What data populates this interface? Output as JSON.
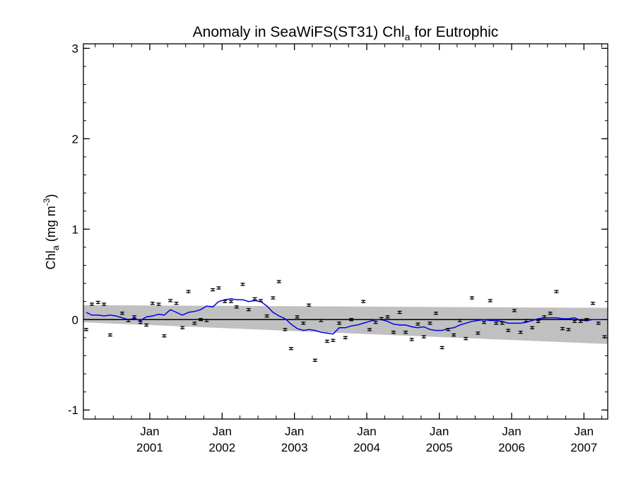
{
  "chart_data": {
    "type": "scatter",
    "title": "Anomaly in SeaWiFS(ST31) Chl",
    "title_subscript": "a",
    "title_suffix": " for Eutrophic",
    "ylabel": "Chl",
    "ylabel_subscript": "a",
    "ylabel_unit": " (mg m",
    "ylabel_unit_sup": "-3",
    "ylabel_close": ")",
    "ylim": [
      -1.1,
      3.05
    ],
    "xlim": [
      "2000-02-01",
      "2007-05-01"
    ],
    "y_ticks": [
      -1,
      0,
      1,
      2,
      3
    ],
    "x_ticks": [
      {
        "date": "2001-01-01",
        "label1": "Jan",
        "label2": "2001"
      },
      {
        "date": "2002-01-01",
        "label1": "Jan",
        "label2": "2002"
      },
      {
        "date": "2003-01-01",
        "label1": "Jan",
        "label2": "2003"
      },
      {
        "date": "2004-01-01",
        "label1": "Jan",
        "label2": "2004"
      },
      {
        "date": "2005-01-01",
        "label1": "Jan",
        "label2": "2005"
      },
      {
        "date": "2006-01-01",
        "label1": "Jan",
        "label2": "2006"
      },
      {
        "date": "2007-01-01",
        "label1": "Jan",
        "label2": "2007"
      }
    ],
    "zero_line": 0,
    "error_half": 0.012,
    "points": [
      {
        "x": "2000-02",
        "y": -0.11
      },
      {
        "x": "2000-03",
        "y": 0.17
      },
      {
        "x": "2000-04",
        "y": 0.19
      },
      {
        "x": "2000-05",
        "y": 0.17
      },
      {
        "x": "2000-06",
        "y": -0.17
      },
      {
        "x": "2000-08",
        "y": 0.07
      },
      {
        "x": "2000-09",
        "y": -0.01
      },
      {
        "x": "2000-10",
        "y": 0.03
      },
      {
        "x": "2000-11",
        "y": -0.03
      },
      {
        "x": "2000-12",
        "y": -0.06
      },
      {
        "x": "2001-01",
        "y": 0.18
      },
      {
        "x": "2001-02",
        "y": 0.17
      },
      {
        "x": "2001-03",
        "y": -0.18
      },
      {
        "x": "2001-04",
        "y": 0.21
      },
      {
        "x": "2001-05",
        "y": 0.18
      },
      {
        "x": "2001-06",
        "y": -0.09
      },
      {
        "x": "2001-07",
        "y": 0.31
      },
      {
        "x": "2001-08",
        "y": -0.04
      },
      {
        "x": "2001-09",
        "y": 0.0
      },
      {
        "x": "2001-10",
        "y": -0.01
      },
      {
        "x": "2001-11",
        "y": 0.33
      },
      {
        "x": "2001-12",
        "y": 0.35
      },
      {
        "x": "2002-01",
        "y": 0.2
      },
      {
        "x": "2002-02",
        "y": 0.2
      },
      {
        "x": "2002-03",
        "y": 0.14
      },
      {
        "x": "2002-04",
        "y": 0.39
      },
      {
        "x": "2002-05",
        "y": 0.11
      },
      {
        "x": "2002-06",
        "y": 0.23
      },
      {
        "x": "2002-07",
        "y": 0.21
      },
      {
        "x": "2002-08",
        "y": 0.04
      },
      {
        "x": "2002-09",
        "y": 0.24
      },
      {
        "x": "2002-10",
        "y": 0.42
      },
      {
        "x": "2002-11",
        "y": -0.11
      },
      {
        "x": "2002-12",
        "y": -0.32
      },
      {
        "x": "2003-01",
        "y": 0.03
      },
      {
        "x": "2003-02",
        "y": -0.04
      },
      {
        "x": "2003-03",
        "y": 0.16
      },
      {
        "x": "2003-04",
        "y": -0.45
      },
      {
        "x": "2003-05",
        "y": -0.01
      },
      {
        "x": "2003-06",
        "y": -0.24
      },
      {
        "x": "2003-07",
        "y": -0.23
      },
      {
        "x": "2003-08",
        "y": -0.04
      },
      {
        "x": "2003-09",
        "y": -0.2
      },
      {
        "x": "2003-10",
        "y": 0.0
      },
      {
        "x": "2003-12",
        "y": 0.2
      },
      {
        "x": "2004-01",
        "y": -0.11
      },
      {
        "x": "2004-02",
        "y": -0.03
      },
      {
        "x": "2004-03",
        "y": 0.01
      },
      {
        "x": "2004-04",
        "y": 0.03
      },
      {
        "x": "2004-05",
        "y": -0.14
      },
      {
        "x": "2004-06",
        "y": 0.08
      },
      {
        "x": "2004-07",
        "y": -0.14
      },
      {
        "x": "2004-08",
        "y": -0.22
      },
      {
        "x": "2004-09",
        "y": -0.05
      },
      {
        "x": "2004-10",
        "y": -0.19
      },
      {
        "x": "2004-11",
        "y": -0.04
      },
      {
        "x": "2004-12",
        "y": 0.07
      },
      {
        "x": "2005-01",
        "y": -0.31
      },
      {
        "x": "2005-02",
        "y": -0.11
      },
      {
        "x": "2005-03",
        "y": -0.17
      },
      {
        "x": "2005-04",
        "y": -0.01
      },
      {
        "x": "2005-05",
        "y": -0.21
      },
      {
        "x": "2005-06",
        "y": 0.24
      },
      {
        "x": "2005-07",
        "y": -0.15
      },
      {
        "x": "2005-08",
        "y": -0.03
      },
      {
        "x": "2005-09",
        "y": 0.21
      },
      {
        "x": "2005-10",
        "y": -0.04
      },
      {
        "x": "2005-11",
        "y": -0.04
      },
      {
        "x": "2005-12",
        "y": -0.12
      },
      {
        "x": "2006-01",
        "y": 0.1
      },
      {
        "x": "2006-02",
        "y": -0.14
      },
      {
        "x": "2006-03",
        "y": -0.01
      },
      {
        "x": "2006-04",
        "y": -0.09
      },
      {
        "x": "2006-05",
        "y": -0.02
      },
      {
        "x": "2006-06",
        "y": 0.03
      },
      {
        "x": "2006-07",
        "y": 0.07
      },
      {
        "x": "2006-08",
        "y": 0.31
      },
      {
        "x": "2006-09",
        "y": -0.1
      },
      {
        "x": "2006-10",
        "y": -0.11
      },
      {
        "x": "2006-11",
        "y": -0.02
      },
      {
        "x": "2006-12",
        "y": -0.02
      },
      {
        "x": "2007-01",
        "y": 0.0
      },
      {
        "x": "2007-02",
        "y": 0.18
      },
      {
        "x": "2007-03",
        "y": -0.04
      },
      {
        "x": "2007-04",
        "y": -0.19
      }
    ],
    "running_mean": [
      {
        "x": "2000-02",
        "y": 0.08
      },
      {
        "x": "2000-03",
        "y": 0.05
      },
      {
        "x": "2000-04",
        "y": 0.05
      },
      {
        "x": "2000-05",
        "y": 0.04
      },
      {
        "x": "2000-06",
        "y": 0.05
      },
      {
        "x": "2000-07",
        "y": 0.04
      },
      {
        "x": "2000-08",
        "y": 0.02
      },
      {
        "x": "2000-09",
        "y": 0.0
      },
      {
        "x": "2000-10",
        "y": 0.01
      },
      {
        "x": "2000-11",
        "y": -0.01
      },
      {
        "x": "2000-12",
        "y": 0.03
      },
      {
        "x": "2001-01",
        "y": 0.04
      },
      {
        "x": "2001-02",
        "y": 0.06
      },
      {
        "x": "2001-03",
        "y": 0.05
      },
      {
        "x": "2001-04",
        "y": 0.11
      },
      {
        "x": "2001-05",
        "y": 0.08
      },
      {
        "x": "2001-06",
        "y": 0.05
      },
      {
        "x": "2001-07",
        "y": 0.08
      },
      {
        "x": "2001-08",
        "y": 0.09
      },
      {
        "x": "2001-09",
        "y": 0.11
      },
      {
        "x": "2001-10",
        "y": 0.15
      },
      {
        "x": "2001-11",
        "y": 0.14
      },
      {
        "x": "2001-12",
        "y": 0.2
      },
      {
        "x": "2002-01",
        "y": 0.22
      },
      {
        "x": "2002-02",
        "y": 0.23
      },
      {
        "x": "2002-03",
        "y": 0.22
      },
      {
        "x": "2002-04",
        "y": 0.22
      },
      {
        "x": "2002-05",
        "y": 0.2
      },
      {
        "x": "2002-06",
        "y": 0.21
      },
      {
        "x": "2002-07",
        "y": 0.2
      },
      {
        "x": "2002-08",
        "y": 0.15
      },
      {
        "x": "2002-09",
        "y": 0.08
      },
      {
        "x": "2002-10",
        "y": 0.04
      },
      {
        "x": "2002-11",
        "y": 0.01
      },
      {
        "x": "2002-12",
        "y": -0.05
      },
      {
        "x": "2003-01",
        "y": -0.1
      },
      {
        "x": "2003-02",
        "y": -0.12
      },
      {
        "x": "2003-03",
        "y": -0.11
      },
      {
        "x": "2003-04",
        "y": -0.12
      },
      {
        "x": "2003-05",
        "y": -0.14
      },
      {
        "x": "2003-06",
        "y": -0.15
      },
      {
        "x": "2003-07",
        "y": -0.16
      },
      {
        "x": "2003-08",
        "y": -0.09
      },
      {
        "x": "2003-09",
        "y": -0.09
      },
      {
        "x": "2003-10",
        "y": -0.07
      },
      {
        "x": "2003-11",
        "y": -0.06
      },
      {
        "x": "2003-12",
        "y": -0.04
      },
      {
        "x": "2004-01",
        "y": -0.02
      },
      {
        "x": "2004-02",
        "y": 0.0
      },
      {
        "x": "2004-03",
        "y": 0.0
      },
      {
        "x": "2004-04",
        "y": -0.02
      },
      {
        "x": "2004-05",
        "y": -0.05
      },
      {
        "x": "2004-06",
        "y": -0.06
      },
      {
        "x": "2004-07",
        "y": -0.06
      },
      {
        "x": "2004-08",
        "y": -0.08
      },
      {
        "x": "2004-09",
        "y": -0.09
      },
      {
        "x": "2004-10",
        "y": -0.08
      },
      {
        "x": "2004-11",
        "y": -0.11
      },
      {
        "x": "2004-12",
        "y": -0.12
      },
      {
        "x": "2005-01",
        "y": -0.12
      },
      {
        "x": "2005-02",
        "y": -0.1
      },
      {
        "x": "2005-03",
        "y": -0.09
      },
      {
        "x": "2005-04",
        "y": -0.06
      },
      {
        "x": "2005-05",
        "y": -0.04
      },
      {
        "x": "2005-06",
        "y": -0.02
      },
      {
        "x": "2005-07",
        "y": -0.01
      },
      {
        "x": "2005-08",
        "y": 0.0
      },
      {
        "x": "2005-09",
        "y": -0.01
      },
      {
        "x": "2005-10",
        "y": -0.01
      },
      {
        "x": "2005-11",
        "y": -0.02
      },
      {
        "x": "2005-12",
        "y": -0.04
      },
      {
        "x": "2006-01",
        "y": -0.04
      },
      {
        "x": "2006-02",
        "y": -0.04
      },
      {
        "x": "2006-03",
        "y": -0.03
      },
      {
        "x": "2006-04",
        "y": -0.01
      },
      {
        "x": "2006-05",
        "y": 0.01
      },
      {
        "x": "2006-06",
        "y": 0.02
      },
      {
        "x": "2006-07",
        "y": 0.02
      },
      {
        "x": "2006-08",
        "y": 0.02
      },
      {
        "x": "2006-09",
        "y": 0.01
      },
      {
        "x": "2006-10",
        "y": 0.01
      },
      {
        "x": "2006-11",
        "y": 0.02
      },
      {
        "x": "2006-12",
        "y": -0.01
      },
      {
        "x": "2007-01",
        "y": -0.01
      },
      {
        "x": "2007-02",
        "y": 0.0
      },
      {
        "x": "2007-03",
        "y": 0.0
      },
      {
        "x": "2007-04",
        "y": 0.0
      }
    ],
    "band": {
      "upper": [
        {
          "x": "2000-02",
          "y": 0.16
        },
        {
          "x": "2007-05",
          "y": 0.13
        }
      ],
      "lower": [
        {
          "x": "2000-02",
          "y": -0.03
        },
        {
          "x": "2007-05",
          "y": -0.27
        }
      ]
    },
    "colors": {
      "band": "#c0c0c0",
      "running_mean": "#0000ee",
      "points": "#000000",
      "zero_line": "#000000",
      "axes": "#000000"
    },
    "grid": false,
    "legend": "none"
  }
}
